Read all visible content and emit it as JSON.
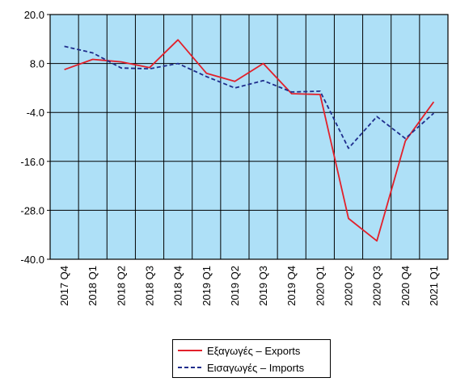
{
  "chart_data": {
    "type": "line",
    "categories": [
      "2017 Q4",
      "2018 Q1",
      "2018 Q2",
      "2018 Q3",
      "2018 Q4",
      "2019 Q1",
      "2019 Q2",
      "2019 Q3",
      "2019 Q4",
      "2020 Q1",
      "2020 Q2",
      "2020 Q3",
      "2020 Q4",
      "2021 Q1"
    ],
    "ylim": [
      -40,
      20
    ],
    "yticks": [
      "20.0",
      "8.0",
      "-4.0",
      "-16.0",
      "-28.0",
      "-40.0"
    ],
    "yticks_values": [
      20,
      8,
      -4,
      -16,
      -28,
      -40
    ],
    "grid": true,
    "plot_background": "#aee0f7",
    "legend_position": "bottom-center",
    "series": [
      {
        "name": "Εξαγωγές – Exports",
        "color": "#e2202a",
        "style": "solid",
        "values": [
          6.5,
          9.0,
          8.4,
          7.0,
          13.8,
          5.6,
          3.6,
          8.0,
          0.6,
          0.4,
          -30.0,
          -35.5,
          -11.0,
          -1.4
        ]
      },
      {
        "name": "Εισαγωγές – Imports",
        "color": "#1f2d8c",
        "style": "dashed",
        "values": [
          12.2,
          10.6,
          6.9,
          6.7,
          8.0,
          4.8,
          2.0,
          3.8,
          1.0,
          1.2,
          -12.8,
          -5.0,
          -10.4,
          -4.2
        ]
      }
    ]
  }
}
